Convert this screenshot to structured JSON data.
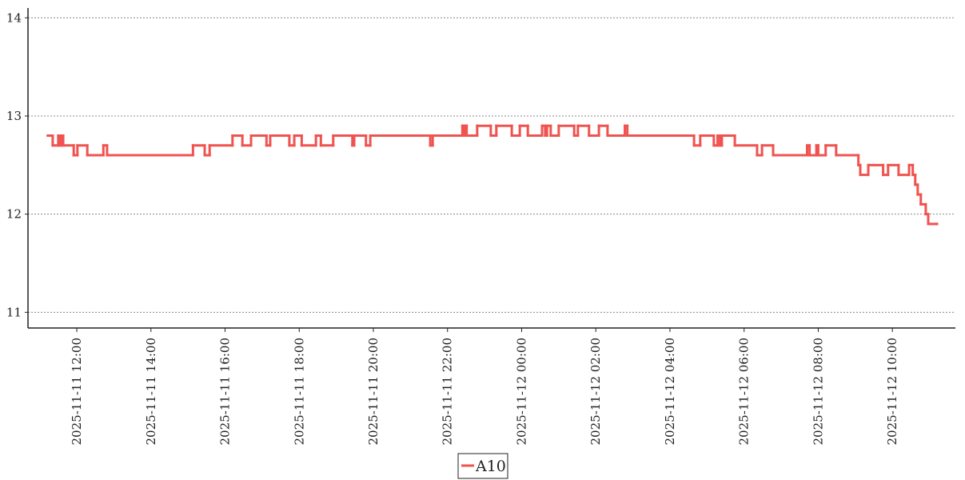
{
  "chart_data": {
    "type": "line",
    "step": "post",
    "xlim": [
      "2025-11-11 10:41",
      "2025-11-12 11:42"
    ],
    "xticks": [
      "2025-11-11 12:00",
      "2025-11-11 14:00",
      "2025-11-11 16:00",
      "2025-11-11 18:00",
      "2025-11-11 20:00",
      "2025-11-11 22:00",
      "2025-11-12 00:00",
      "2025-11-12 02:00",
      "2025-11-12 04:00",
      "2025-11-12 06:00",
      "2025-11-12 08:00",
      "2025-11-12 10:00"
    ],
    "ylim": [
      10.84,
      14.1
    ],
    "yticks": [
      11,
      12,
      13,
      14
    ],
    "grid": true,
    "x": [
      "2025-11-11 11:13",
      "2025-11-11 11:21",
      "2025-11-11 11:30",
      "2025-11-11 11:33",
      "2025-11-11 11:35",
      "2025-11-11 11:38",
      "2025-11-11 11:55",
      "2025-11-11 12:01",
      "2025-11-11 12:17",
      "2025-11-11 12:43",
      "2025-11-11 12:49",
      "2025-11-11 15:08",
      "2025-11-11 15:27",
      "2025-11-11 15:35",
      "2025-11-11 16:12",
      "2025-11-11 16:28",
      "2025-11-11 16:42",
      "2025-11-11 17:07",
      "2025-11-11 17:13",
      "2025-11-11 17:44",
      "2025-11-11 17:52",
      "2025-11-11 18:04",
      "2025-11-11 18:27",
      "2025-11-11 18:35",
      "2025-11-11 18:55",
      "2025-11-11 19:26",
      "2025-11-11 19:29",
      "2025-11-11 19:48",
      "2025-11-11 19:55",
      "2025-11-11 21:32",
      "2025-11-11 21:36",
      "2025-11-11 22:24",
      "2025-11-11 22:26",
      "2025-11-11 22:29",
      "2025-11-11 22:31",
      "2025-11-11 22:48",
      "2025-11-11 23:10",
      "2025-11-11 23:19",
      "2025-11-11 23:44",
      "2025-11-11 23:57",
      "2025-11-12 00:10",
      "2025-11-12 00:33",
      "2025-11-12 00:38",
      "2025-11-12 00:41",
      "2025-11-12 00:47",
      "2025-11-12 01:00",
      "2025-11-12 01:25",
      "2025-11-12 01:31",
      "2025-11-12 01:49",
      "2025-11-12 02:05",
      "2025-11-12 02:19",
      "2025-11-12 02:47",
      "2025-11-12 02:51",
      "2025-11-12 04:39",
      "2025-11-12 04:49",
      "2025-11-12 05:11",
      "2025-11-12 05:17",
      "2025-11-12 05:21",
      "2025-11-12 05:24",
      "2025-11-12 05:45",
      "2025-11-12 06:21",
      "2025-11-12 06:29",
      "2025-11-12 06:47",
      "2025-11-12 07:42",
      "2025-11-12 07:46",
      "2025-11-12 07:57",
      "2025-11-12 08:00",
      "2025-11-12 08:12",
      "2025-11-12 08:29",
      "2025-11-12 09:05",
      "2025-11-12 09:08",
      "2025-11-12 09:21",
      "2025-11-12 09:45",
      "2025-11-12 09:53",
      "2025-11-12 10:10",
      "2025-11-12 10:27",
      "2025-11-12 10:33",
      "2025-11-12 10:37",
      "2025-11-12 10:41",
      "2025-11-12 10:46",
      "2025-11-12 10:54",
      "2025-11-12 10:58",
      "2025-11-12 11:12"
    ],
    "series": [
      {
        "name": "A10",
        "color": "#ef5350",
        "values": [
          12.8,
          12.7,
          12.8,
          12.7,
          12.8,
          12.7,
          12.6,
          12.7,
          12.6,
          12.7,
          12.6,
          12.7,
          12.6,
          12.7,
          12.8,
          12.7,
          12.8,
          12.7,
          12.8,
          12.7,
          12.8,
          12.7,
          12.8,
          12.7,
          12.8,
          12.7,
          12.8,
          12.7,
          12.8,
          12.7,
          12.8,
          12.9,
          12.8,
          12.9,
          12.8,
          12.9,
          12.8,
          12.9,
          12.8,
          12.9,
          12.8,
          12.9,
          12.8,
          12.9,
          12.8,
          12.9,
          12.8,
          12.9,
          12.8,
          12.9,
          12.8,
          12.9,
          12.8,
          12.7,
          12.8,
          12.7,
          12.8,
          12.7,
          12.8,
          12.7,
          12.6,
          12.7,
          12.6,
          12.7,
          12.6,
          12.7,
          12.6,
          12.7,
          12.6,
          12.5,
          12.4,
          12.5,
          12.4,
          12.5,
          12.4,
          12.5,
          12.4,
          12.3,
          12.2,
          12.1,
          12.0,
          11.9,
          11.9
        ]
      }
    ]
  }
}
